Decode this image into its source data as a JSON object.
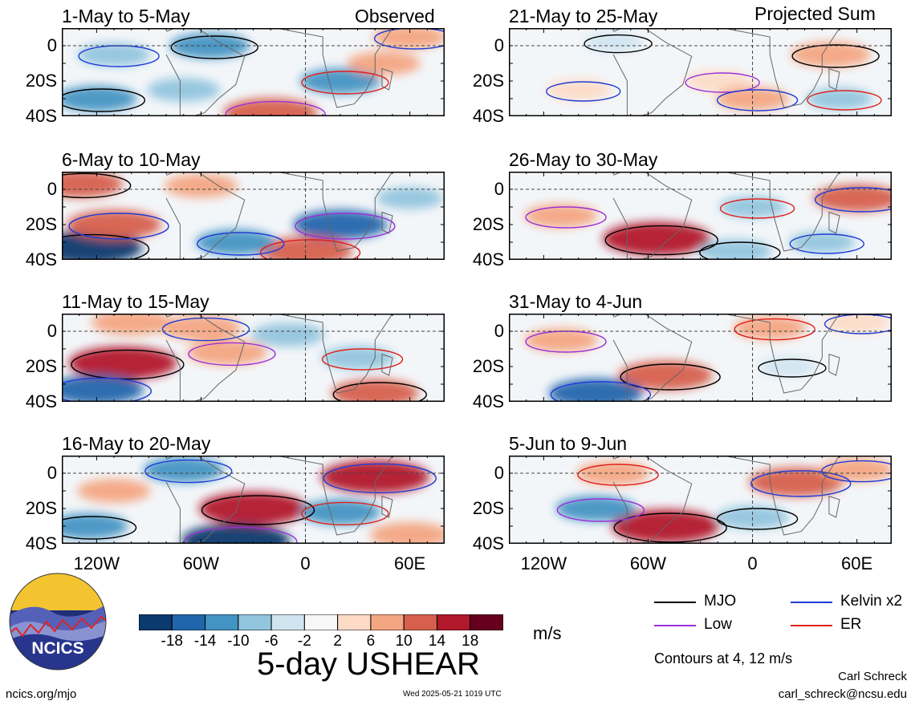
{
  "branding": {
    "logo_text": "NCICS",
    "url": "ncics.org/mjo",
    "timestamp": "Wed 2025-05-21 1019 UTC",
    "author": "Carl Schreck",
    "email": "carl_schreck@ncsu.edu"
  },
  "figure": {
    "title": "5-day USHEAR",
    "units": "m/s",
    "contour_note": "Contours at 4, 12 m/s"
  },
  "axes": {
    "y_ticks": [
      {
        "label": "0",
        "lat": 0
      },
      {
        "label": "20S",
        "lat": -20
      },
      {
        "label": "40S",
        "lat": -40
      }
    ],
    "x_ticks": [
      {
        "label": "120W",
        "lon": -120
      },
      {
        "label": "60W",
        "lon": -60
      },
      {
        "label": "0",
        "lon": 0
      },
      {
        "label": "60E",
        "lon": 60
      }
    ],
    "lon_range": [
      -140,
      80
    ],
    "lat_range": [
      -40,
      10
    ]
  },
  "colorbar": {
    "tick_labels": [
      "-18",
      "-14",
      "-10",
      "-6",
      "-2",
      "2",
      "6",
      "10",
      "14",
      "18"
    ],
    "colors": [
      "#0b3a6e",
      "#2166ac",
      "#4393c3",
      "#92c5de",
      "#d1e5f0",
      "#f7f7f7",
      "#fddbc7",
      "#f4a582",
      "#d6604d",
      "#b2182b",
      "#67001f"
    ]
  },
  "legend": [
    {
      "name": "MJO",
      "color": "#000000"
    },
    {
      "name": "Kelvin x2",
      "color": "#1f3bd6"
    },
    {
      "name": "Low",
      "color": "#9b30d9"
    },
    {
      "name": "ER",
      "color": "#e0201b"
    }
  ],
  "columns": {
    "left_label": "Observed",
    "right_label": "Projected Sum"
  },
  "chart_data": {
    "type": "heatmap",
    "variable": "5-day USHEAR",
    "units": "m/s",
    "contour_levels": [
      4,
      12
    ],
    "panels": [
      {
        "title": "1-May to 5-May",
        "column": "Observed",
        "features": [
          {
            "lon": -55,
            "lat": 0,
            "value": -10
          },
          {
            "lon": -110,
            "lat": -5,
            "value": -8
          },
          {
            "lon": -20,
            "lat": -38,
            "value": 14
          },
          {
            "lon": 20,
            "lat": -20,
            "value": -10
          },
          {
            "lon": -120,
            "lat": -30,
            "value": -10
          },
          {
            "lon": 60,
            "lat": 5,
            "value": 8
          },
          {
            "lon": -70,
            "lat": -25,
            "value": -8
          },
          {
            "lon": 45,
            "lat": -10,
            "value": 8
          }
        ]
      },
      {
        "title": "21-May to 25-May",
        "column": "Projected Sum",
        "features": [
          {
            "lon": 45,
            "lat": -5,
            "value": 10
          },
          {
            "lon": -100,
            "lat": -25,
            "value": 6
          },
          {
            "lon": -20,
            "lat": -20,
            "value": 6
          },
          {
            "lon": 50,
            "lat": -30,
            "value": -6
          },
          {
            "lon": -80,
            "lat": 2,
            "value": -4
          },
          {
            "lon": 0,
            "lat": -30,
            "value": 8
          }
        ]
      },
      {
        "title": "6-May to 10-May",
        "column": "Observed",
        "features": [
          {
            "lon": -125,
            "lat": -33,
            "value": -18
          },
          {
            "lon": -110,
            "lat": -20,
            "value": 14
          },
          {
            "lon": 20,
            "lat": -20,
            "value": -14
          },
          {
            "lon": 0,
            "lat": -35,
            "value": 14
          },
          {
            "lon": -130,
            "lat": 3,
            "value": 12
          },
          {
            "lon": -40,
            "lat": -30,
            "value": -10
          },
          {
            "lon": 60,
            "lat": -5,
            "value": -6
          },
          {
            "lon": -60,
            "lat": 2,
            "value": 8
          }
        ]
      },
      {
        "title": "26-May to 30-May",
        "column": "Projected Sum",
        "features": [
          {
            "lon": -55,
            "lat": -28,
            "value": 18
          },
          {
            "lon": 60,
            "lat": -5,
            "value": 12
          },
          {
            "lon": -110,
            "lat": -15,
            "value": 8
          },
          {
            "lon": 0,
            "lat": -10,
            "value": -6
          },
          {
            "lon": -10,
            "lat": -35,
            "value": -8
          },
          {
            "lon": 40,
            "lat": -30,
            "value": -6
          }
        ]
      },
      {
        "title": "11-May to 15-May",
        "column": "Observed",
        "features": [
          {
            "lon": -105,
            "lat": -18,
            "value": 18
          },
          {
            "lon": -120,
            "lat": -33,
            "value": -14
          },
          {
            "lon": -45,
            "lat": -12,
            "value": 10
          },
          {
            "lon": 30,
            "lat": -15,
            "value": -8
          },
          {
            "lon": 40,
            "lat": -35,
            "value": 12
          },
          {
            "lon": -60,
            "lat": 2,
            "value": 10
          },
          {
            "lon": -100,
            "lat": 5,
            "value": 10
          },
          {
            "lon": -10,
            "lat": -2,
            "value": -8
          }
        ]
      },
      {
        "title": "31-May to 4-Jun",
        "column": "Projected Sum",
        "features": [
          {
            "lon": -50,
            "lat": -25,
            "value": 14
          },
          {
            "lon": -90,
            "lat": -35,
            "value": -14
          },
          {
            "lon": -110,
            "lat": -5,
            "value": 8
          },
          {
            "lon": 10,
            "lat": 2,
            "value": 8
          },
          {
            "lon": 20,
            "lat": -20,
            "value": -4
          },
          {
            "lon": 60,
            "lat": 5,
            "value": 6
          }
        ]
      },
      {
        "title": "16-May to 20-May",
        "column": "Observed",
        "features": [
          {
            "lon": -30,
            "lat": -20,
            "value": 18
          },
          {
            "lon": 40,
            "lat": -2,
            "value": 18
          },
          {
            "lon": -40,
            "lat": -38,
            "value": -18
          },
          {
            "lon": 20,
            "lat": -22,
            "value": -10
          },
          {
            "lon": -125,
            "lat": -30,
            "value": -10
          },
          {
            "lon": -70,
            "lat": 2,
            "value": -10
          },
          {
            "lon": -110,
            "lat": -10,
            "value": 8
          },
          {
            "lon": 60,
            "lat": -35,
            "value": 10
          }
        ]
      },
      {
        "title": "5-Jun to 9-Jun",
        "column": "Projected Sum",
        "features": [
          {
            "lon": -50,
            "lat": -30,
            "value": 18
          },
          {
            "lon": 25,
            "lat": -5,
            "value": 14
          },
          {
            "lon": -90,
            "lat": -20,
            "value": -10
          },
          {
            "lon": -80,
            "lat": 0,
            "value": 8
          },
          {
            "lon": 0,
            "lat": -25,
            "value": -8
          },
          {
            "lon": 60,
            "lat": 2,
            "value": 8
          }
        ]
      }
    ]
  }
}
